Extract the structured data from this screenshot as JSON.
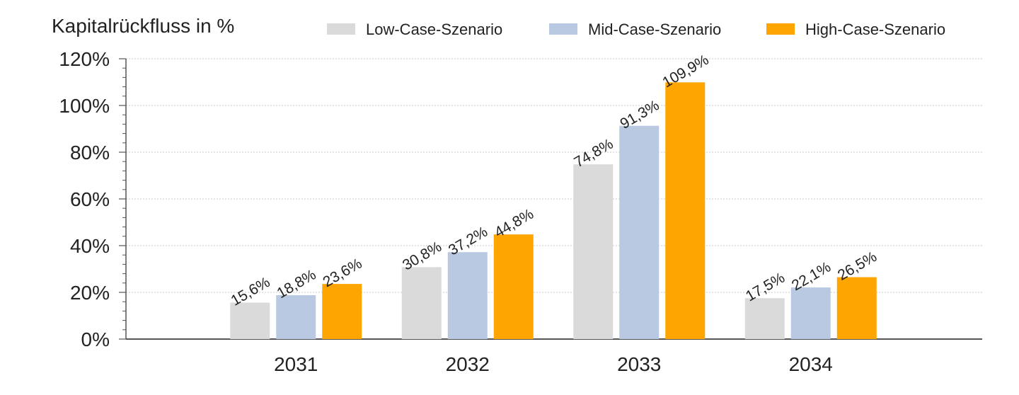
{
  "chart_data": {
    "type": "bar",
    "ylabel": "Kapitalrückfluss in %",
    "categories": [
      "2031",
      "2032",
      "2033",
      "2034"
    ],
    "series": [
      {
        "name": "Low-Case-Szenario",
        "color": "#dadada",
        "values": [
          15.6,
          30.8,
          74.8,
          17.5
        ],
        "labels": [
          "15,6%",
          "30,8%",
          "74,8%",
          "17,5%"
        ]
      },
      {
        "name": "Mid-Case-Szenario",
        "color": "#b8c9e1",
        "values": [
          18.8,
          37.2,
          91.3,
          22.1
        ],
        "labels": [
          "18,8%",
          "37,2%",
          "91,3%",
          "22,1%"
        ]
      },
      {
        "name": "High-Case-Szenario",
        "color": "#ffa500",
        "values": [
          23.6,
          44.8,
          109.9,
          26.5
        ],
        "labels": [
          "23,6%",
          "44,8%",
          "109,9%",
          "26,5%"
        ]
      }
    ],
    "ylim": [
      0,
      120
    ],
    "yticks": [
      0,
      20,
      40,
      60,
      80,
      100,
      120
    ],
    "ytick_labels": [
      "0%",
      "20%",
      "40%",
      "60%",
      "80%",
      "100%",
      "120%"
    ],
    "grid": true,
    "legend_position": "top"
  }
}
